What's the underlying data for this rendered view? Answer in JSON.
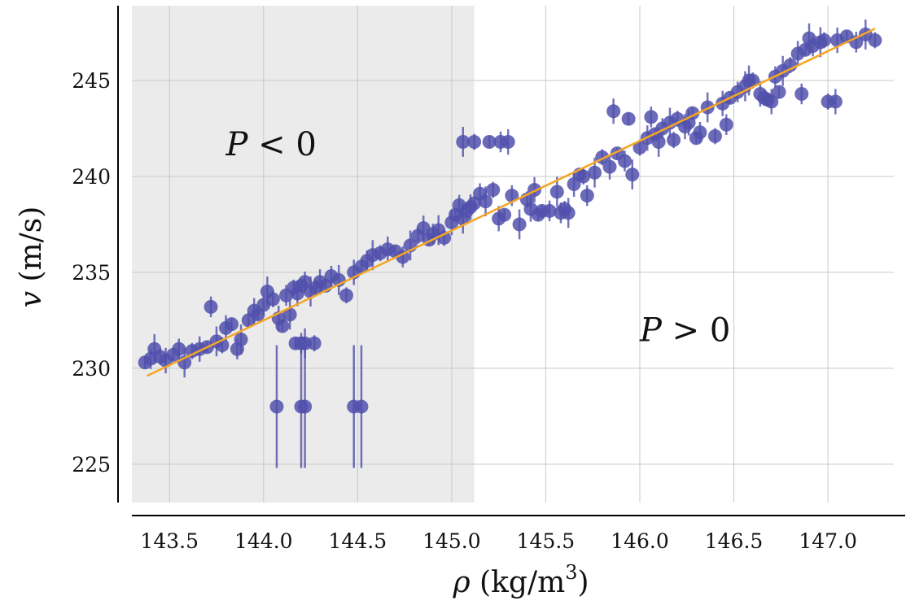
{
  "chart_data": {
    "type": "scatter",
    "xlabel": "ρ (kg/m³)",
    "ylabel": "v (m/s)",
    "xlabel_parts": {
      "symbol": "ρ",
      "unit_open": " (kg/m",
      "unit_exp": "3",
      "unit_close": ")"
    },
    "ylabel_parts": {
      "symbol": "v",
      "unit": " (m/s)"
    },
    "xlim": [
      143.3,
      147.35
    ],
    "ylim": [
      223.0,
      248.9
    ],
    "xticks": [
      "143.5",
      "144.0",
      "144.5",
      "145.0",
      "145.5",
      "146.0",
      "146.5",
      "147.0"
    ],
    "yticks": [
      "225",
      "230",
      "235",
      "240",
      "245"
    ],
    "grid": true,
    "shaded_region": {
      "x": [
        143.3,
        145.12
      ],
      "color": "#ebebeb"
    },
    "annotations": [
      {
        "text": "P < 0",
        "symbol": "P",
        "op": " < 0",
        "x": 143.8,
        "y": 241.7
      },
      {
        "text": "P > 0",
        "symbol": "P",
        "op": " > 0",
        "x": 146.0,
        "y": 232.0
      }
    ],
    "fit_line": {
      "x": [
        143.38,
        147.25
      ],
      "y": [
        229.6,
        247.7
      ],
      "color": "#f5a623"
    },
    "point_color": "#5151ad",
    "series": [
      {
        "points": [
          [
            143.37,
            230.3
          ],
          [
            143.4,
            230.5
          ],
          [
            143.42,
            231.0
          ],
          [
            143.45,
            230.6
          ],
          [
            143.48,
            230.4
          ],
          [
            143.52,
            230.7
          ],
          [
            143.55,
            231.0
          ],
          [
            143.58,
            230.3
          ],
          [
            143.62,
            230.9
          ],
          [
            143.66,
            231.0
          ],
          [
            143.7,
            231.1
          ],
          [
            143.72,
            233.2
          ],
          [
            143.75,
            231.4
          ],
          [
            143.78,
            231.2
          ],
          [
            143.8,
            232.1
          ],
          [
            143.83,
            232.3
          ],
          [
            143.86,
            231.0
          ],
          [
            143.88,
            231.5
          ],
          [
            143.92,
            232.5
          ],
          [
            143.95,
            233.0
          ],
          [
            143.97,
            232.8
          ],
          [
            144.0,
            233.3
          ],
          [
            144.02,
            234.0
          ],
          [
            144.05,
            233.6
          ],
          [
            144.08,
            232.6
          ],
          [
            144.1,
            232.2
          ],
          [
            144.12,
            233.8
          ],
          [
            144.14,
            232.8
          ],
          [
            144.16,
            234.2
          ],
          [
            144.18,
            233.9
          ],
          [
            144.2,
            234.3
          ],
          [
            144.22,
            234.5
          ],
          [
            144.25,
            234.0
          ],
          [
            144.28,
            234.2
          ],
          [
            144.3,
            234.5
          ],
          [
            144.33,
            234.3
          ],
          [
            144.36,
            234.8
          ],
          [
            144.4,
            234.6
          ],
          [
            144.44,
            233.8
          ],
          [
            144.48,
            235.0
          ],
          [
            144.52,
            235.3
          ],
          [
            144.55,
            235.6
          ],
          [
            144.58,
            235.9
          ],
          [
            144.62,
            236.0
          ],
          [
            144.66,
            236.2
          ],
          [
            144.7,
            236.1
          ],
          [
            144.74,
            235.8
          ],
          [
            144.78,
            236.4
          ],
          [
            144.82,
            236.9
          ],
          [
            144.85,
            237.3
          ],
          [
            144.88,
            236.7
          ],
          [
            144.9,
            237.0
          ],
          [
            144.93,
            237.2
          ],
          [
            144.96,
            236.8
          ],
          [
            145.0,
            237.6
          ],
          [
            145.02,
            238.0
          ],
          [
            145.04,
            238.5
          ],
          [
            145.06,
            237.8
          ],
          [
            145.08,
            238.2
          ],
          [
            145.1,
            238.4
          ],
          [
            145.12,
            238.6
          ],
          [
            145.15,
            239.1
          ],
          [
            145.18,
            238.7
          ],
          [
            145.22,
            239.3
          ],
          [
            145.25,
            237.8
          ],
          [
            145.28,
            238.0
          ],
          [
            145.32,
            239.0
          ],
          [
            145.36,
            237.5
          ],
          [
            145.4,
            238.8
          ],
          [
            145.44,
            239.3
          ],
          [
            145.48,
            238.2
          ],
          [
            145.52,
            238.2
          ],
          [
            145.56,
            239.2
          ],
          [
            145.6,
            238.3
          ],
          [
            145.65,
            239.6
          ],
          [
            145.68,
            240.1
          ],
          [
            145.72,
            239.0
          ],
          [
            145.76,
            240.2
          ],
          [
            145.8,
            241.0
          ],
          [
            145.84,
            240.5
          ],
          [
            145.88,
            241.2
          ],
          [
            145.92,
            240.8
          ],
          [
            145.96,
            240.1
          ],
          [
            146.0,
            241.5
          ],
          [
            146.04,
            242.0
          ],
          [
            146.08,
            242.2
          ],
          [
            146.12,
            242.5
          ],
          [
            146.16,
            242.8
          ],
          [
            146.2,
            243.0
          ],
          [
            146.24,
            242.6
          ],
          [
            146.28,
            243.3
          ],
          [
            146.32,
            242.3
          ],
          [
            146.36,
            243.6
          ],
          [
            146.4,
            242.1
          ],
          [
            146.44,
            243.8
          ],
          [
            146.48,
            244.1
          ],
          [
            146.52,
            244.4
          ],
          [
            146.56,
            244.7
          ],
          [
            146.6,
            245.0
          ],
          [
            146.64,
            244.3
          ],
          [
            146.68,
            244.0
          ],
          [
            146.72,
            245.2
          ],
          [
            146.76,
            245.5
          ],
          [
            146.8,
            245.8
          ],
          [
            146.84,
            246.4
          ],
          [
            146.88,
            246.6
          ],
          [
            146.92,
            246.8
          ],
          [
            146.96,
            247.0
          ],
          [
            147.0,
            243.9
          ],
          [
            147.05,
            247.1
          ],
          [
            147.1,
            247.3
          ],
          [
            147.15,
            247.0
          ],
          [
            147.2,
            247.4
          ],
          [
            147.25,
            247.1
          ],
          [
            145.42,
            238.3
          ],
          [
            145.46,
            238.0
          ],
          [
            145.58,
            238.1
          ],
          [
            145.62,
            238.1
          ],
          [
            145.7,
            240.0
          ],
          [
            145.86,
            243.4
          ],
          [
            145.94,
            243.0
          ],
          [
            146.06,
            243.1
          ],
          [
            146.1,
            241.8
          ],
          [
            146.18,
            241.9
          ],
          [
            146.26,
            242.8
          ],
          [
            146.3,
            242.0
          ],
          [
            146.46,
            242.7
          ],
          [
            146.58,
            245.0
          ],
          [
            146.66,
            244.1
          ],
          [
            146.7,
            243.9
          ],
          [
            146.74,
            244.4
          ],
          [
            146.86,
            244.3
          ],
          [
            146.9,
            247.2
          ],
          [
            146.98,
            247.1
          ],
          [
            147.04,
            243.9
          ],
          [
            145.2,
            241.8
          ],
          [
            145.26,
            241.8
          ],
          [
            145.06,
            241.8
          ],
          [
            145.12,
            241.8
          ],
          [
            145.3,
            241.8
          ],
          [
            144.17,
            231.3
          ],
          [
            144.2,
            231.3
          ],
          [
            144.22,
            231.3
          ],
          [
            144.27,
            231.3
          ]
        ]
      },
      {
        "name": "",
        "points": [
          [
            144.07,
            228.0
          ],
          [
            144.2,
            228.0
          ],
          [
            144.22,
            228.0
          ],
          [
            144.48,
            228.0
          ],
          [
            144.52,
            228.0
          ]
        ]
      }
    ]
  }
}
